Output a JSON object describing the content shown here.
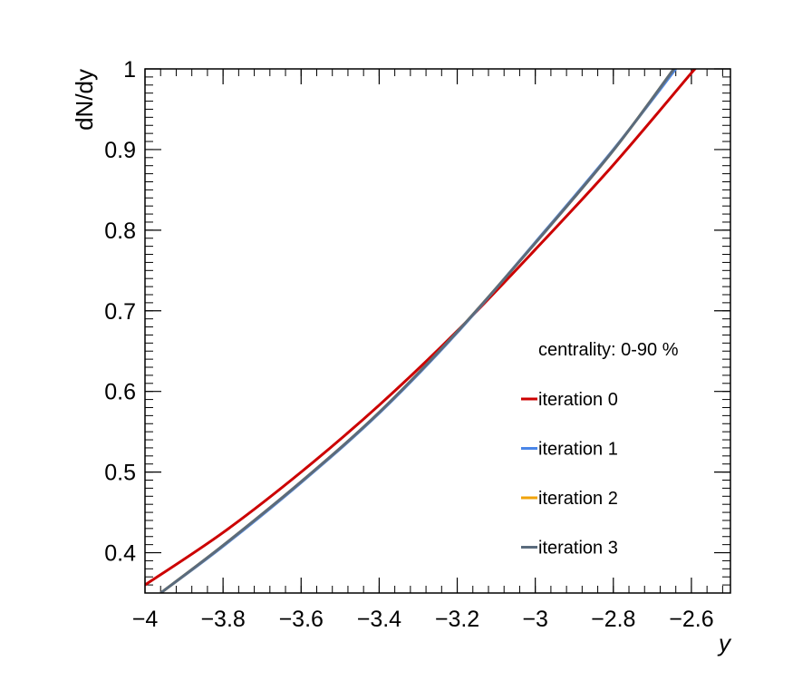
{
  "chart_data": {
    "type": "line",
    "xlabel": "y",
    "ylabel": "dN/dy",
    "xlim": [
      -4.0,
      -2.5
    ],
    "ylim": [
      0.35,
      1.0
    ],
    "xticks": [
      -4.0,
      -3.8,
      -3.6,
      -3.4,
      -3.2,
      -3.0,
      -2.8,
      -2.6
    ],
    "xtick_labels": [
      "−4",
      "−3.8",
      "−3.6",
      "−3.4",
      "−3.2",
      "−3",
      "−2.8",
      "−2.6"
    ],
    "yticks": [
      0.4,
      0.5,
      0.6,
      0.7,
      0.8,
      0.9,
      1.0
    ],
    "ytick_labels": [
      "0.4",
      "0.5",
      "0.6",
      "0.7",
      "0.8",
      "0.9",
      "1"
    ],
    "grid": false,
    "legend_position": "right",
    "annotation": "centrality: 0-90 %",
    "series": [
      {
        "name": "iteration 0",
        "color": "#cc0000",
        "x": [
          -4.0,
          -3.8,
          -3.6,
          -3.4,
          -3.2,
          -3.0,
          -2.8,
          -2.6,
          -2.59
        ],
        "y": [
          0.36,
          0.425,
          0.5,
          0.583,
          0.675,
          0.776,
          0.881,
          0.995,
          1.0
        ]
      },
      {
        "name": "iteration 1",
        "color": "#4a86e8",
        "x": [
          -3.96,
          -3.8,
          -3.6,
          -3.4,
          -3.2,
          -3.0,
          -2.8,
          -2.64
        ],
        "y": [
          0.35,
          0.408,
          0.487,
          0.573,
          0.673,
          0.785,
          0.9,
          1.0
        ]
      },
      {
        "name": "iteration 2",
        "color": "#f0a30a",
        "x": [
          -3.96,
          -3.8,
          -3.6,
          -3.4,
          -3.2,
          -3.0,
          -2.8,
          -2.645
        ],
        "y": [
          0.35,
          0.409,
          0.488,
          0.574,
          0.674,
          0.784,
          0.899,
          1.0
        ]
      },
      {
        "name": "iteration 3",
        "color": "#5a6b7d",
        "x": [
          -3.96,
          -3.8,
          -3.6,
          -3.4,
          -3.2,
          -3.0,
          -2.8,
          -2.645
        ],
        "y": [
          0.35,
          0.409,
          0.488,
          0.574,
          0.674,
          0.784,
          0.899,
          1.0
        ]
      }
    ]
  }
}
